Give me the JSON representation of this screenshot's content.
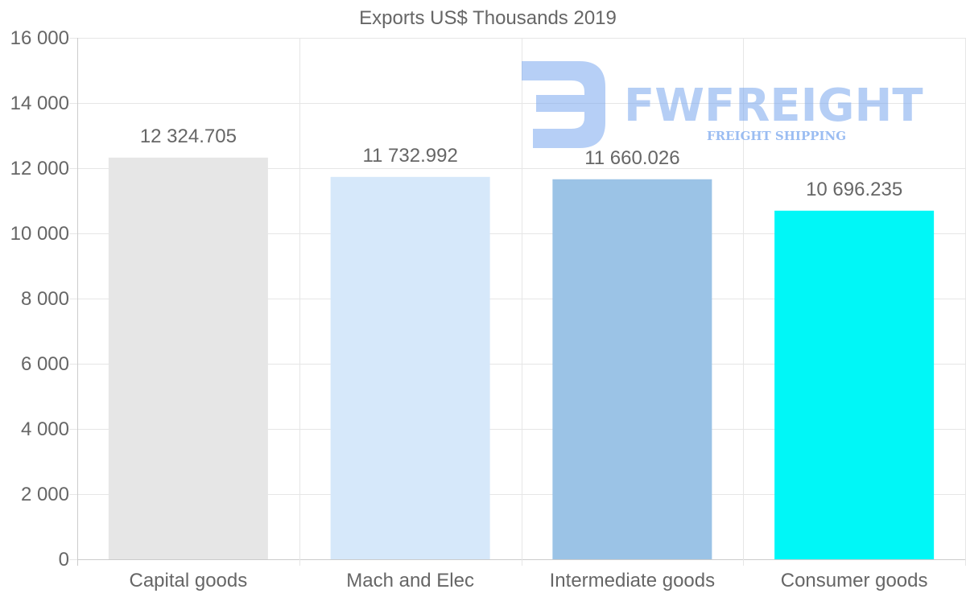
{
  "chart_data": {
    "type": "bar",
    "title": "Exports US$ Thousands 2019",
    "categories": [
      "Capital goods",
      "Mach and Elec",
      "Intermediate goods",
      "Consumer goods"
    ],
    "values": [
      12324.705,
      11732.992,
      11660.026,
      10696.235
    ],
    "value_labels": [
      "12 324.705",
      "11 732.992",
      "11 660.026",
      "10 696.235"
    ],
    "bar_colors": [
      "#e6e6e6",
      "#d6e8fa",
      "#9bc3e6",
      "#00f7f7"
    ],
    "ylim": [
      0,
      16000
    ],
    "yticks": [
      0,
      2000,
      4000,
      6000,
      8000,
      10000,
      12000,
      14000,
      16000
    ],
    "ytick_labels": [
      "0",
      "2 000",
      "4 000",
      "6 000",
      "8 000",
      "10 000",
      "12 000",
      "14 000",
      "16 000"
    ],
    "xlabel": "",
    "ylabel": "",
    "grid": true
  },
  "watermark": {
    "name": "FWFREIGHT",
    "tagline": "FREIGHT SHIPPING",
    "color": "#7aa7ee"
  },
  "colors": {
    "text": "#666666",
    "grid": "#e6e6e6",
    "axis": "#cccccc"
  }
}
